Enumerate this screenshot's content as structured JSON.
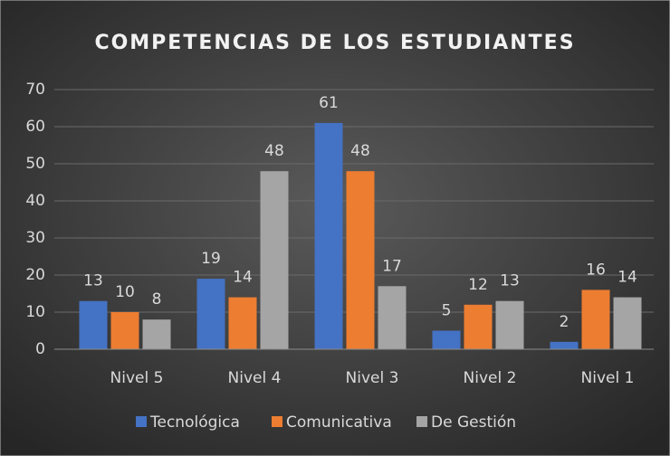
{
  "chart_data": {
    "type": "bar",
    "title": "COMPETENCIAS DE LOS ESTUDIANTES",
    "categories": [
      "Nivel 5",
      "Nivel 4",
      "Nivel 3",
      "Nivel 2",
      "Nivel 1"
    ],
    "series": [
      {
        "name": "Tecnológica",
        "color": "#4472c4",
        "values": [
          13,
          19,
          61,
          5,
          2
        ]
      },
      {
        "name": "Comunicativa",
        "color": "#ed7d31",
        "values": [
          10,
          14,
          48,
          12,
          16
        ]
      },
      {
        "name": "De Gestión",
        "color": "#a5a5a5",
        "values": [
          8,
          48,
          17,
          13,
          14
        ]
      }
    ],
    "ylim": [
      0,
      70
    ],
    "yticks": [
      0,
      10,
      20,
      30,
      40,
      50,
      60,
      70
    ],
    "grid": true,
    "legend": "bottom"
  }
}
